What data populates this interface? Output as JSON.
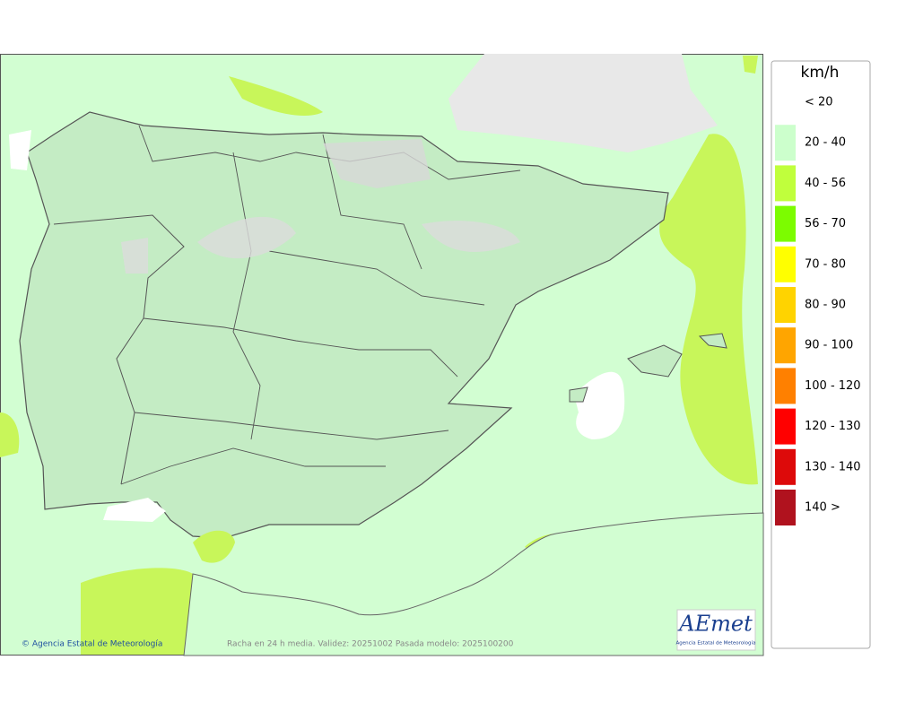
{
  "legend": {
    "unit": "km/h",
    "items": [
      {
        "label": "< 20",
        "color": "#ffffff"
      },
      {
        "label": "20 - 40",
        "color": "#ccffcc"
      },
      {
        "label": "40 - 56",
        "color": "#c0ff3c"
      },
      {
        "label": "56 - 70",
        "color": "#7cfc00"
      },
      {
        "label": "70 - 80",
        "color": "#ffff00"
      },
      {
        "label": "80 - 90",
        "color": "#ffd300"
      },
      {
        "label": "90 - 100",
        "color": "#ffa500"
      },
      {
        "label": "100 - 120",
        "color": "#ff8000"
      },
      {
        "label": "120 - 130",
        "color": "#ff0000"
      },
      {
        "label": "130 - 140",
        "color": "#dd0a0a"
      },
      {
        "label": "140 >",
        "color": "#b0121e"
      }
    ]
  },
  "footer": {
    "credit": "© Agencia Estatal de Meteorología",
    "caption": "Racha en 24 h media. Validez: 20251002 Pasada modelo: 2025100200"
  },
  "logo": {
    "text": "AEmet",
    "subtitle": "Agencia Estatal de Meteorología"
  }
}
